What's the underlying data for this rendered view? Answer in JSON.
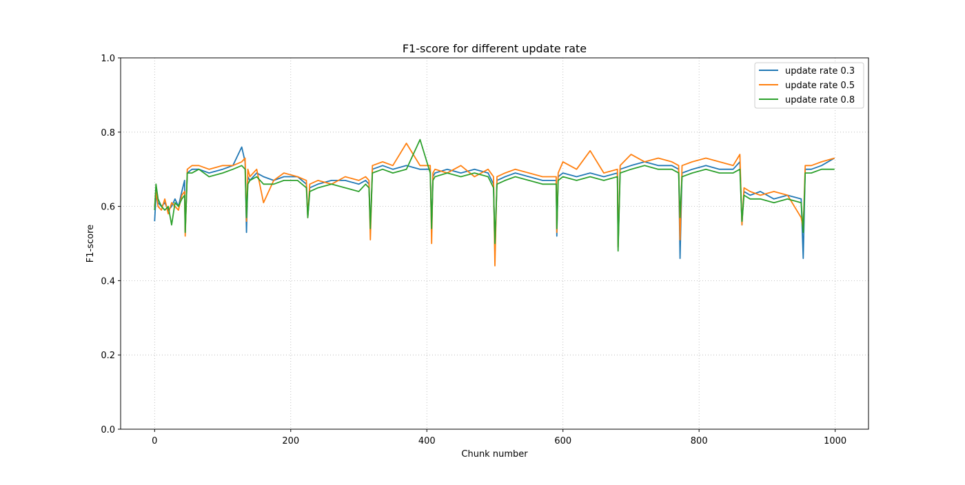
{
  "chart_data": {
    "type": "line",
    "title": "F1-score for different update rate",
    "xlabel": "Chunk number",
    "ylabel": "F1-score",
    "xlim": [
      -49.95,
      1048.95
    ],
    "ylim": [
      0.0,
      1.0
    ],
    "xticks": [
      0,
      200,
      400,
      600,
      800,
      1000
    ],
    "xtick_labels": [
      "0",
      "200",
      "400",
      "600",
      "800",
      "1000"
    ],
    "yticks": [
      0.0,
      0.2,
      0.4,
      0.6,
      0.8,
      1.0
    ],
    "ytick_labels": [
      "0.0",
      "0.2",
      "0.4",
      "0.6",
      "0.8",
      "1.0"
    ],
    "grid": true,
    "legend": "upper right",
    "series": [
      {
        "name": "update rate 0.3",
        "color": "#1f77b4",
        "x": [
          0,
          2,
          5,
          10,
          15,
          20,
          25,
          30,
          35,
          40,
          44,
          45,
          48,
          55,
          65,
          80,
          100,
          115,
          128,
          133,
          135,
          137,
          140,
          150,
          160,
          175,
          190,
          210,
          223,
          225,
          228,
          240,
          260,
          280,
          300,
          310,
          315,
          317,
          320,
          335,
          350,
          370,
          390,
          405,
          407,
          409,
          412,
          430,
          450,
          470,
          490,
          498,
          500,
          503,
          515,
          530,
          550,
          570,
          590,
          591,
          593,
          600,
          620,
          640,
          660,
          680,
          681,
          684,
          700,
          720,
          740,
          760,
          770,
          772,
          775,
          790,
          810,
          830,
          850,
          860,
          863,
          866,
          875,
          890,
          910,
          930,
          950,
          953,
          956,
          965,
          980,
          999
        ],
        "y": [
          0.56,
          0.63,
          0.61,
          0.6,
          0.61,
          0.59,
          0.6,
          0.62,
          0.6,
          0.64,
          0.67,
          0.53,
          0.69,
          0.7,
          0.7,
          0.69,
          0.7,
          0.71,
          0.76,
          0.72,
          0.53,
          0.68,
          0.67,
          0.69,
          0.68,
          0.67,
          0.68,
          0.68,
          0.66,
          0.57,
          0.65,
          0.66,
          0.67,
          0.67,
          0.66,
          0.67,
          0.66,
          0.54,
          0.7,
          0.71,
          0.7,
          0.71,
          0.7,
          0.7,
          0.53,
          0.68,
          0.69,
          0.7,
          0.69,
          0.7,
          0.69,
          0.66,
          0.47,
          0.67,
          0.68,
          0.69,
          0.68,
          0.67,
          0.67,
          0.52,
          0.68,
          0.69,
          0.68,
          0.69,
          0.68,
          0.69,
          0.49,
          0.7,
          0.71,
          0.72,
          0.71,
          0.71,
          0.7,
          0.46,
          0.69,
          0.7,
          0.71,
          0.7,
          0.7,
          0.72,
          0.55,
          0.64,
          0.63,
          0.64,
          0.62,
          0.63,
          0.62,
          0.46,
          0.7,
          0.7,
          0.71,
          0.73
        ]
      },
      {
        "name": "update rate 0.5",
        "color": "#ff7f0e",
        "x": [
          0,
          2,
          5,
          10,
          15,
          20,
          25,
          30,
          35,
          40,
          44,
          45,
          48,
          55,
          65,
          80,
          100,
          115,
          128,
          133,
          135,
          137,
          140,
          150,
          160,
          175,
          190,
          210,
          223,
          225,
          228,
          240,
          260,
          280,
          300,
          310,
          315,
          317,
          320,
          335,
          350,
          370,
          390,
          405,
          407,
          409,
          412,
          430,
          450,
          470,
          490,
          498,
          500,
          503,
          515,
          530,
          550,
          570,
          590,
          591,
          593,
          600,
          620,
          640,
          660,
          680,
          681,
          684,
          700,
          720,
          740,
          760,
          770,
          772,
          775,
          790,
          810,
          830,
          850,
          860,
          863,
          866,
          875,
          890,
          910,
          930,
          950,
          953,
          956,
          965,
          980,
          999
        ],
        "y": [
          0.6,
          0.64,
          0.6,
          0.59,
          0.62,
          0.58,
          0.61,
          0.6,
          0.59,
          0.63,
          0.64,
          0.52,
          0.7,
          0.71,
          0.71,
          0.7,
          0.71,
          0.71,
          0.72,
          0.73,
          0.56,
          0.7,
          0.68,
          0.7,
          0.61,
          0.67,
          0.69,
          0.68,
          0.67,
          0.57,
          0.66,
          0.67,
          0.66,
          0.68,
          0.67,
          0.68,
          0.67,
          0.51,
          0.71,
          0.72,
          0.71,
          0.77,
          0.71,
          0.71,
          0.5,
          0.69,
          0.7,
          0.69,
          0.71,
          0.68,
          0.7,
          0.68,
          0.44,
          0.68,
          0.69,
          0.7,
          0.69,
          0.68,
          0.68,
          0.53,
          0.69,
          0.72,
          0.7,
          0.75,
          0.69,
          0.7,
          0.49,
          0.71,
          0.74,
          0.72,
          0.73,
          0.72,
          0.71,
          0.51,
          0.71,
          0.72,
          0.73,
          0.72,
          0.71,
          0.74,
          0.55,
          0.65,
          0.64,
          0.63,
          0.64,
          0.63,
          0.57,
          0.54,
          0.71,
          0.71,
          0.72,
          0.73
        ]
      },
      {
        "name": "update rate 0.8",
        "color": "#2ca02c",
        "x": [
          0,
          2,
          5,
          10,
          15,
          20,
          25,
          30,
          35,
          40,
          44,
          45,
          48,
          55,
          65,
          80,
          100,
          115,
          128,
          133,
          135,
          137,
          140,
          150,
          160,
          175,
          190,
          210,
          223,
          225,
          228,
          240,
          260,
          280,
          300,
          310,
          315,
          317,
          320,
          335,
          350,
          370,
          390,
          405,
          407,
          409,
          412,
          430,
          450,
          470,
          490,
          498,
          500,
          503,
          515,
          530,
          550,
          570,
          590,
          591,
          593,
          600,
          620,
          640,
          660,
          680,
          681,
          684,
          700,
          720,
          740,
          760,
          770,
          772,
          775,
          790,
          810,
          830,
          850,
          860,
          863,
          866,
          875,
          890,
          910,
          930,
          950,
          953,
          956,
          965,
          980,
          999
        ],
        "y": [
          0.59,
          0.66,
          0.62,
          0.6,
          0.59,
          0.6,
          0.55,
          0.61,
          0.6,
          0.62,
          0.63,
          0.53,
          0.69,
          0.69,
          0.7,
          0.68,
          0.69,
          0.7,
          0.71,
          0.7,
          0.57,
          0.66,
          0.67,
          0.68,
          0.66,
          0.66,
          0.67,
          0.67,
          0.65,
          0.57,
          0.64,
          0.65,
          0.66,
          0.65,
          0.64,
          0.66,
          0.65,
          0.54,
          0.69,
          0.7,
          0.69,
          0.7,
          0.78,
          0.69,
          0.54,
          0.67,
          0.68,
          0.69,
          0.68,
          0.69,
          0.68,
          0.65,
          0.5,
          0.66,
          0.67,
          0.68,
          0.67,
          0.66,
          0.66,
          0.54,
          0.67,
          0.68,
          0.67,
          0.68,
          0.67,
          0.68,
          0.48,
          0.69,
          0.7,
          0.71,
          0.7,
          0.7,
          0.69,
          0.57,
          0.68,
          0.69,
          0.7,
          0.69,
          0.69,
          0.7,
          0.56,
          0.63,
          0.62,
          0.62,
          0.61,
          0.62,
          0.61,
          0.53,
          0.69,
          0.69,
          0.7,
          0.7
        ]
      }
    ]
  }
}
